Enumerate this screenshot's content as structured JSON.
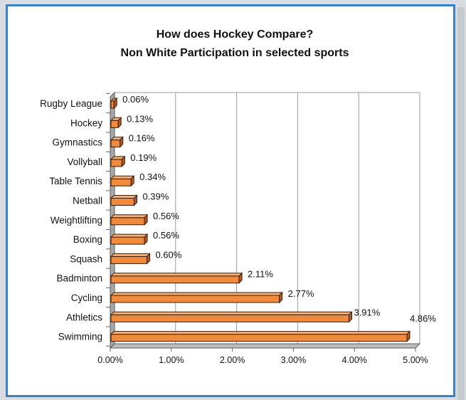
{
  "chart_data": {
    "type": "bar",
    "orientation": "horizontal",
    "title": "How does Hockey Compare?",
    "subtitle": "Non White Participation in selected sports",
    "categories": [
      "Rugby League",
      "Hockey",
      "Gymnastics",
      "Vollyball",
      "Table Tennis",
      "Netball",
      "Weightlifting",
      "Boxing",
      "Squash",
      "Badminton",
      "Cycling",
      "Athletics",
      "Swimming"
    ],
    "values": [
      0.06,
      0.13,
      0.16,
      0.19,
      0.34,
      0.39,
      0.56,
      0.56,
      0.6,
      2.11,
      2.77,
      3.91,
      4.86
    ],
    "data_labels": [
      "0.06%",
      "0.13%",
      "0.16%",
      "0.19%",
      "0.34%",
      "0.39%",
      "0.56%",
      "0.56%",
      "0.60%",
      "2.11%",
      "2.77%",
      "3.91%",
      "4.86%"
    ],
    "xlim": [
      0,
      5
    ],
    "xticks": [
      0,
      1,
      2,
      3,
      4,
      5
    ],
    "xtick_labels": [
      "0.00%",
      "1.00%",
      "2.00%",
      "3.00%",
      "4.00%",
      "5.00%"
    ],
    "grid": "vertical",
    "legend": "none",
    "colors": {
      "bar_face": "#f08a3c",
      "bar_top": "#f6b07a",
      "bar_side": "#b35a1c",
      "bar_outline": "#3a1c08",
      "highlight_label": "#3f78c4",
      "frame": "#3b82c4"
    },
    "highlight_category": "Hockey"
  }
}
